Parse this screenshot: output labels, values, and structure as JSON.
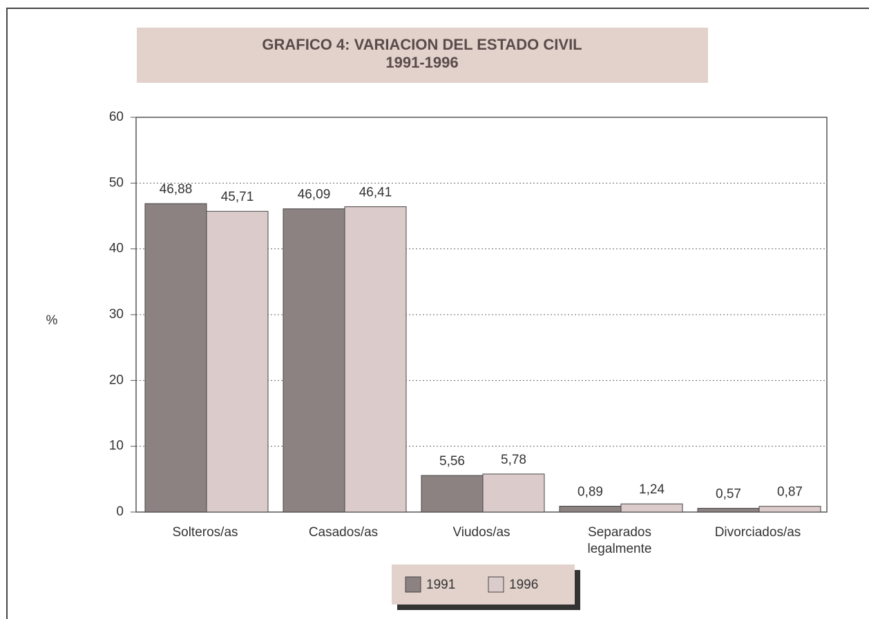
{
  "chart_data": {
    "type": "bar",
    "title": "GRAFICO 4: VARIACION DEL ESTADO CIVIL",
    "subtitle": "1991-1996",
    "y_label": "%",
    "categories": [
      "Solteros/as",
      "Casados/as",
      "Viudos/as",
      "Separados legalmente",
      "Divorciados/as"
    ],
    "series": [
      {
        "name": "1991",
        "color": "#8c8282",
        "values": [
          46.88,
          46.09,
          5.56,
          0.89,
          0.57
        ],
        "value_labels": [
          "46,88",
          "46,09",
          "5,56",
          "0,89",
          "0,57"
        ]
      },
      {
        "name": "1996",
        "color": "#dccbcb",
        "values": [
          45.71,
          46.41,
          5.78,
          1.24,
          0.87
        ],
        "value_labels": [
          "45,71",
          "46,41",
          "5,78",
          "1,24",
          "0,87"
        ]
      }
    ],
    "ylim": [
      0,
      60
    ],
    "yticks": [
      0,
      10,
      20,
      30,
      40,
      50,
      60
    ],
    "grid": true,
    "legend": "bottom"
  }
}
